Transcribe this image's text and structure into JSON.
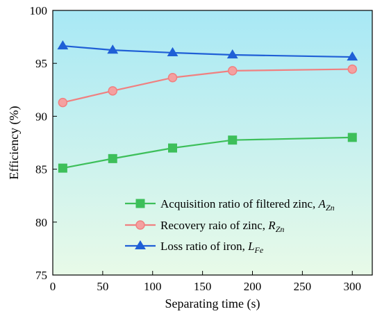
{
  "chart_data": {
    "type": "line",
    "xlabel": "Separating time (s)",
    "ylabel": "Efficiency (%)",
    "xlim": [
      0,
      320
    ],
    "ylim": [
      75,
      100
    ],
    "xticks": [
      0,
      50,
      100,
      150,
      200,
      250,
      300
    ],
    "yticks": [
      75,
      80,
      85,
      90,
      95,
      100
    ],
    "x": [
      10,
      60,
      120,
      180,
      300
    ],
    "legend_position": "bottom-right",
    "background": "gradient-cyan-to-pale-green",
    "series": [
      {
        "key": "a",
        "name": "Acquisition ratio of filtered zinc, ",
        "var": "A",
        "sub": "Zn",
        "color": "#3dbf5a",
        "fill": "#3dbf5a",
        "marker": "square",
        "values": [
          85.1,
          86.0,
          87.0,
          87.75,
          88.0
        ]
      },
      {
        "key": "r",
        "name": "Recovery raio of zinc, ",
        "var": "R",
        "sub": "Zn",
        "color": "#f08080",
        "fill": "#f4a0a0",
        "marker": "circle",
        "values": [
          91.3,
          92.4,
          93.65,
          94.3,
          94.45
        ]
      },
      {
        "key": "l",
        "name": "Loss ratio of iron, ",
        "var": "L",
        "sub": "Fe",
        "color": "#1f5fd6",
        "fill": "#1f5fd6",
        "marker": "triangle",
        "values": [
          96.65,
          96.25,
          96.0,
          95.8,
          95.6
        ]
      }
    ]
  }
}
